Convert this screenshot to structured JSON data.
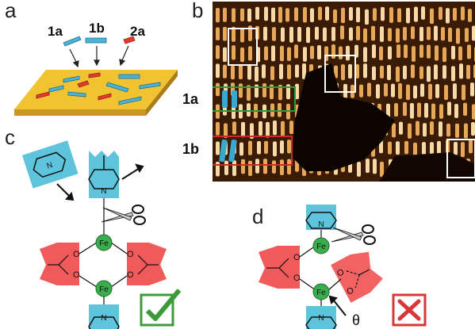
{
  "panels": {
    "a": "a",
    "b": "b",
    "c": "c",
    "d": "d"
  },
  "panel_a": {
    "molecule_labels": [
      "1a",
      "1b",
      "2a"
    ]
  },
  "panel_b": {
    "row_labels": [
      "1a",
      "1b"
    ]
  },
  "panel_c": {
    "atoms": {
      "iron": "Fe",
      "nitrogen": "N",
      "oxygen": "O"
    },
    "verdict_icon": "green-check-icon"
  },
  "panel_d": {
    "atoms": {
      "iron": "Fe",
      "nitrogen": "N",
      "oxygen": "O"
    },
    "angle_symbol": "θ",
    "verdict_icon": "red-cross-icon"
  },
  "colors": {
    "substrate": "#f2c330",
    "molecule_blue": "#4bb3d6",
    "molecule_red": "#e8392f",
    "iron": "#3cad4e",
    "acetate": "#f15a5a",
    "pyridine": "#5ec4dc",
    "check": "#3d9a3a",
    "cross": "#d6383a",
    "box_green": "#2a9a3a",
    "box_red": "#cc2a2a"
  }
}
